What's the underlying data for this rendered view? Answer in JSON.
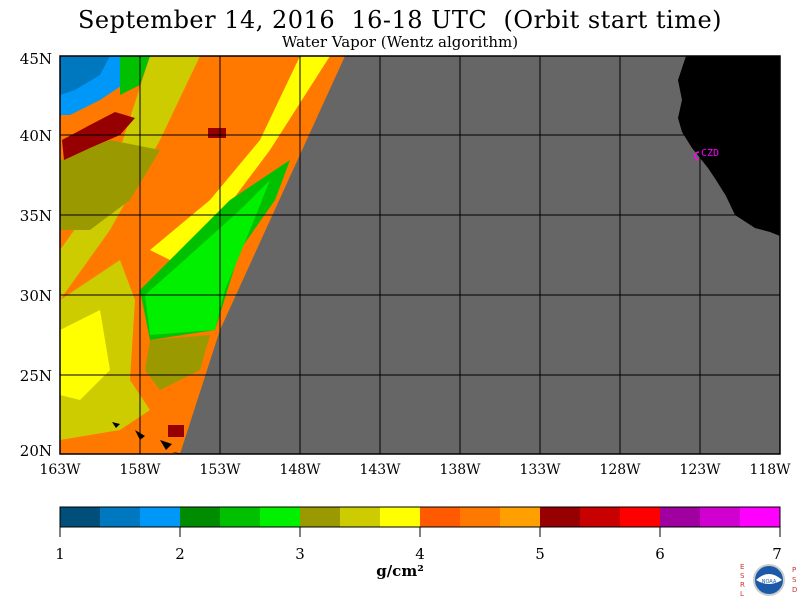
{
  "header": {
    "title": "September 14, 2016  16-18 UTC  (Orbit start time)",
    "subtitle": "Water Vapor (Wentz algorithm)"
  },
  "map": {
    "lat_labels": [
      "45N",
      "40N",
      "35N",
      "30N",
      "25N",
      "20N"
    ],
    "lon_labels": [
      "163W",
      "158W",
      "153W",
      "148W",
      "143W",
      "138W",
      "133W",
      "128W",
      "123W",
      "118W"
    ],
    "station_label": "CZD",
    "no_data_color": "#666666",
    "land_color": "#000000"
  },
  "colorbar": {
    "ticks": [
      "1",
      "2",
      "3",
      "4",
      "5",
      "6",
      "7"
    ],
    "units": "g/cm²",
    "colors": [
      "#004f7a",
      "#0078c0",
      "#0098f8",
      "#008c00",
      "#00c000",
      "#00f000",
      "#9a9a00",
      "#cccc00",
      "#ffff00",
      "#ff5a00",
      "#ff7800",
      "#ffa000",
      "#960000",
      "#c80000",
      "#ff0000",
      "#a000a0",
      "#d000d0",
      "#ff00ff"
    ]
  },
  "logo": {
    "left_letters": "ESRL",
    "right_letters": "PSD",
    "inner_text": "NOAA"
  }
}
